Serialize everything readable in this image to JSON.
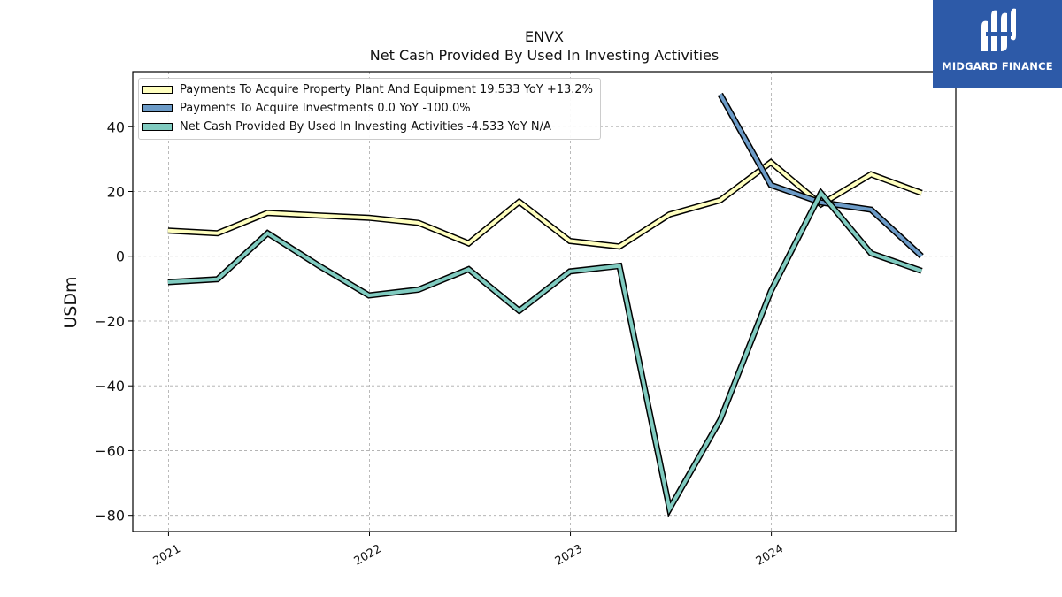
{
  "brand": {
    "name": "MIDGARD FINANCE",
    "color": "#2d5aa8"
  },
  "chart_data": {
    "type": "line",
    "title": "ENVX",
    "subtitle": "Net Cash Provided By Used In Investing Activities",
    "ylabel": "USDm",
    "xlabel": "",
    "ylim": [
      -85,
      57
    ],
    "xlim": [
      "2020-10-28",
      "2024-12-01"
    ],
    "yticks": [
      -80,
      -60,
      -40,
      -20,
      0,
      20,
      40
    ],
    "ytick_labels": [
      "−80",
      "−60",
      "−40",
      "−20",
      "0",
      "20",
      "40"
    ],
    "xticks": [
      "2021-01-01",
      "2022-01-01",
      "2023-01-01",
      "2024-01-01"
    ],
    "xtick_labels": [
      "2021",
      "2022",
      "2023",
      "2024"
    ],
    "grid": true,
    "legend_position": "top-left",
    "series": [
      {
        "name": "Payments To Acquire Property Plant And Equipment",
        "legend_label": "Payments To Acquire Property Plant And Equipment  19.533 YoY +13.2%",
        "color": "#ffffbf",
        "x": [
          "2020-12-31",
          "2021-03-31",
          "2021-06-30",
          "2021-09-30",
          "2021-12-31",
          "2022-03-31",
          "2022-06-30",
          "2022-09-30",
          "2022-12-31",
          "2023-03-31",
          "2023-06-30",
          "2023-09-30",
          "2023-12-31",
          "2024-03-31",
          "2024-06-30",
          "2024-09-30"
        ],
        "y": [
          7.9,
          7.1,
          13.4,
          12.6,
          11.9,
          10.3,
          4.0,
          16.8,
          4.7,
          3.0,
          12.9,
          17.3,
          29.0,
          16.0,
          25.3,
          19.533
        ]
      },
      {
        "name": "Payments To Acquire Investments",
        "legend_label": "Payments To Acquire Investments  0.0 YoY -100.0%",
        "color": "#6c9bc7",
        "x": [
          "2023-09-30",
          "2023-12-31",
          "2024-03-31",
          "2024-06-30",
          "2024-09-30"
        ],
        "y": [
          50.0,
          22.0,
          16.6,
          14.4,
          0.0
        ]
      },
      {
        "name": "Net Cash Provided By Used In Investing Activities",
        "legend_label": "Net Cash Provided By Used In Investing Activities  -4.533 YoY N/A",
        "color": "#80cbc0",
        "x": [
          "2020-12-31",
          "2021-03-31",
          "2021-06-30",
          "2021-09-30",
          "2021-12-31",
          "2022-03-31",
          "2022-06-30",
          "2022-09-30",
          "2022-12-31",
          "2023-03-31",
          "2023-06-30",
          "2023-09-30",
          "2023-12-31",
          "2024-03-31",
          "2024-06-30",
          "2024-09-30"
        ],
        "y": [
          -8.0,
          -7.1,
          7.1,
          -2.8,
          -12.1,
          -10.3,
          -4.0,
          -16.8,
          -4.7,
          -3.0,
          -78.0,
          -50.5,
          -10.8,
          19.5,
          0.9,
          -4.533
        ]
      }
    ]
  }
}
